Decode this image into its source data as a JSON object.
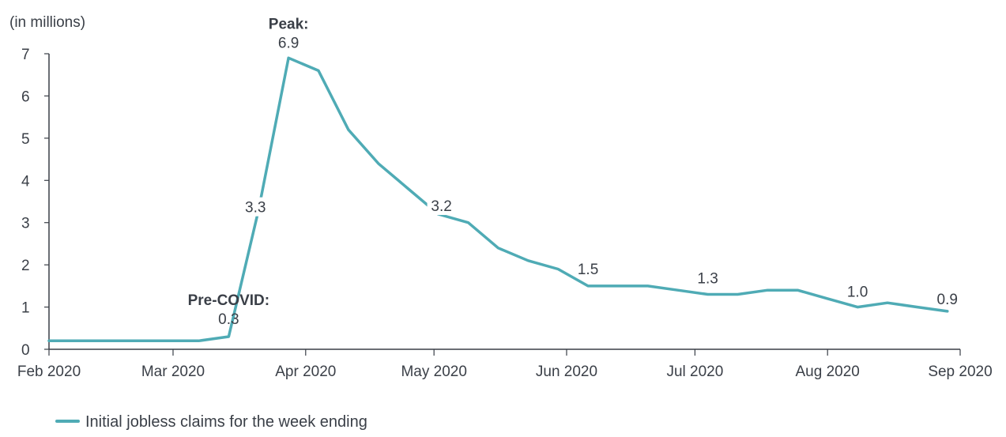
{
  "chart_data": {
    "type": "line",
    "title": "",
    "ylabel": "(in millions)",
    "xlabel": "",
    "ylim": [
      0,
      7
    ],
    "yticks": [
      0,
      1,
      2,
      3,
      4,
      5,
      6,
      7
    ],
    "xlim": [
      "2020-02-01",
      "2020-09-01"
    ],
    "xticks": [
      {
        "date": "2020-02-01",
        "label": "Feb 2020"
      },
      {
        "date": "2020-03-01",
        "label": "Mar 2020"
      },
      {
        "date": "2020-04-01",
        "label": "Apr 2020"
      },
      {
        "date": "2020-05-01",
        "label": "May 2020"
      },
      {
        "date": "2020-06-01",
        "label": "Jun 2020"
      },
      {
        "date": "2020-07-01",
        "label": "Jul 2020"
      },
      {
        "date": "2020-08-01",
        "label": "Aug 2020"
      },
      {
        "date": "2020-09-01",
        "label": "Sep 2020"
      }
    ],
    "grid": false,
    "legend_position": "bottom-left",
    "color": "#4fabb5",
    "series": [
      {
        "name": "Initial jobless claims for the week ending",
        "points": [
          {
            "x": "2020-02-01",
            "y": 0.2
          },
          {
            "x": "2020-02-08",
            "y": 0.2
          },
          {
            "x": "2020-02-15",
            "y": 0.2
          },
          {
            "x": "2020-02-22",
            "y": 0.2
          },
          {
            "x": "2020-02-29",
            "y": 0.2
          },
          {
            "x": "2020-03-07",
            "y": 0.2
          },
          {
            "x": "2020-03-14",
            "y": 0.3
          },
          {
            "x": "2020-03-21",
            "y": 3.3
          },
          {
            "x": "2020-03-28",
            "y": 6.9
          },
          {
            "x": "2020-04-04",
            "y": 6.6
          },
          {
            "x": "2020-04-11",
            "y": 5.2
          },
          {
            "x": "2020-04-18",
            "y": 4.4
          },
          {
            "x": "2020-04-25",
            "y": 3.8
          },
          {
            "x": "2020-05-02",
            "y": 3.2
          },
          {
            "x": "2020-05-09",
            "y": 3.0
          },
          {
            "x": "2020-05-16",
            "y": 2.4
          },
          {
            "x": "2020-05-23",
            "y": 2.1
          },
          {
            "x": "2020-05-30",
            "y": 1.9
          },
          {
            "x": "2020-06-06",
            "y": 1.5
          },
          {
            "x": "2020-06-13",
            "y": 1.5
          },
          {
            "x": "2020-06-20",
            "y": 1.5
          },
          {
            "x": "2020-06-27",
            "y": 1.4
          },
          {
            "x": "2020-07-04",
            "y": 1.3
          },
          {
            "x": "2020-07-11",
            "y": 1.3
          },
          {
            "x": "2020-07-18",
            "y": 1.4
          },
          {
            "x": "2020-07-25",
            "y": 1.4
          },
          {
            "x": "2020-08-01",
            "y": 1.2
          },
          {
            "x": "2020-08-08",
            "y": 1.0
          },
          {
            "x": "2020-08-15",
            "y": 1.1
          },
          {
            "x": "2020-08-22",
            "y": 1.0
          },
          {
            "x": "2020-08-29",
            "y": 0.9
          }
        ]
      }
    ],
    "annotations": [
      {
        "x": "2020-03-14",
        "y": 0.3,
        "title": "Pre-COVID:",
        "value": "0.3"
      },
      {
        "x": "2020-03-21",
        "y": 3.3,
        "title": "",
        "value": "3.3"
      },
      {
        "x": "2020-03-28",
        "y": 6.9,
        "title": "Peak:",
        "value": "6.9"
      },
      {
        "x": "2020-05-02",
        "y": 3.2,
        "title": "",
        "value": "3.2"
      },
      {
        "x": "2020-06-06",
        "y": 1.5,
        "title": "",
        "value": "1.5"
      },
      {
        "x": "2020-07-04",
        "y": 1.3,
        "title": "",
        "value": "1.3"
      },
      {
        "x": "2020-08-08",
        "y": 1.0,
        "title": "",
        "value": "1.0"
      },
      {
        "x": "2020-08-29",
        "y": 0.9,
        "title": "",
        "value": "0.9"
      }
    ]
  }
}
